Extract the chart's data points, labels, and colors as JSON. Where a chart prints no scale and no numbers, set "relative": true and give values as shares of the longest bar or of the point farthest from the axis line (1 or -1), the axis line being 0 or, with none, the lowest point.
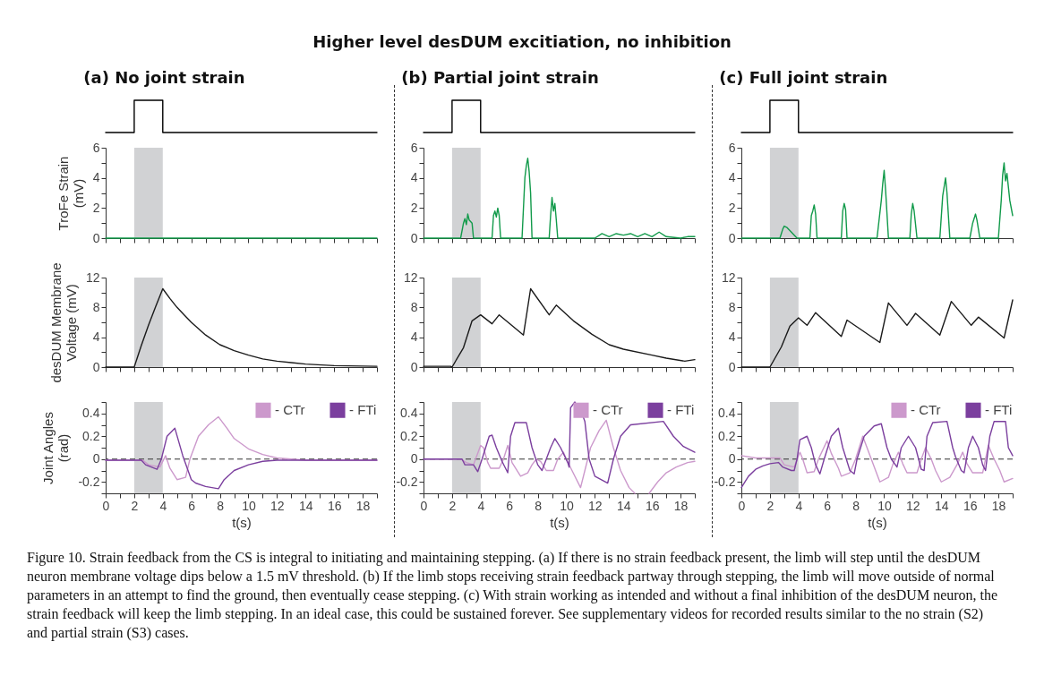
{
  "chart_data": [
    {
      "type": "other",
      "title": "Higher level desDUM excitiation, no inhibition"
    },
    {
      "type": "line",
      "title": "(a) No joint strain",
      "relative": true,
      "tick_labels": false,
      "xlim": [
        0,
        19
      ],
      "x": [
        0,
        2,
        2,
        4,
        4,
        19
      ],
      "series": [
        {
          "color": "#000000",
          "values": [
            0,
            0,
            1,
            1,
            0,
            0
          ]
        }
      ]
    },
    {
      "type": "line",
      "ylabel": "TroFe Strain (mV)",
      "tick_labels": "y",
      "xlim": [
        0,
        19
      ],
      "ylim": [
        0,
        6
      ],
      "xticks": [
        0,
        {
          "value": 1,
          "label": null
        },
        2,
        {
          "value": 3,
          "label": null
        },
        4,
        {
          "value": 5,
          "label": null
        },
        6,
        {
          "value": 7,
          "label": null
        },
        8,
        {
          "value": 9,
          "label": null
        },
        10,
        {
          "value": 11,
          "label": null
        },
        12,
        {
          "value": 13,
          "label": null
        },
        14,
        {
          "value": 15,
          "label": null
        },
        16,
        {
          "value": 17,
          "label": null
        },
        18,
        {
          "value": 19,
          "label": null
        }
      ],
      "yticks": [
        0,
        {
          "value": 1,
          "label": null
        },
        2,
        {
          "value": 3,
          "label": null
        },
        4,
        {
          "value": 5,
          "label": null
        },
        6
      ],
      "x": [
        0,
        19
      ],
      "series": [
        {
          "color": "#119a4a",
          "values": [
            0,
            0
          ]
        }
      ],
      "bands": [
        {
          "axis": "x",
          "from": 2,
          "to": 4,
          "color": "#d1d2d4"
        }
      ]
    },
    {
      "type": "line",
      "ylabel": "desDUM Membrane Voltage (mV)",
      "tick_labels": "y",
      "xlim": [
        0,
        19
      ],
      "ylim": [
        0,
        12
      ],
      "xticks": [
        0,
        {
          "value": 1,
          "label": null
        },
        2,
        {
          "value": 3,
          "label": null
        },
        4,
        {
          "value": 5,
          "label": null
        },
        6,
        {
          "value": 7,
          "label": null
        },
        8,
        {
          "value": 9,
          "label": null
        },
        10,
        {
          "value": 11,
          "label": null
        },
        12,
        {
          "value": 13,
          "label": null
        },
        14,
        {
          "value": 15,
          "label": null
        },
        16,
        {
          "value": 17,
          "label": null
        },
        18,
        {
          "value": 19,
          "label": null
        }
      ],
      "yticks": [
        0,
        {
          "value": 2,
          "label": null
        },
        4,
        {
          "value": 6,
          "label": null
        },
        8,
        {
          "value": 10,
          "label": null
        },
        12
      ],
      "x": [
        0,
        2,
        2.5,
        3,
        3.5,
        4,
        4.5,
        5,
        5.5,
        6,
        7,
        8,
        9,
        10,
        11,
        12,
        13,
        14,
        16,
        19
      ],
      "series": [
        {
          "color": "#1a1a1a",
          "values": [
            0,
            0,
            2.9,
            5.6,
            8.1,
            10.5,
            9.2,
            8.0,
            7.0,
            6.0,
            4.3,
            3.0,
            2.2,
            1.6,
            1.1,
            0.8,
            0.6,
            0.4,
            0.2,
            0.1
          ]
        }
      ],
      "bands": [
        {
          "axis": "x",
          "from": 2,
          "to": 4,
          "color": "#d1d2d4"
        }
      ]
    },
    {
      "type": "line",
      "ylabel": "Joint Angles (rad)",
      "xlabel": "t(s)",
      "xlim": [
        0,
        19
      ],
      "ylim": [
        -0.3,
        0.5
      ],
      "legend": "top right",
      "xticks": [
        0,
        {
          "value": 1,
          "label": null
        },
        2,
        {
          "value": 3,
          "label": null
        },
        4,
        {
          "value": 5,
          "label": null
        },
        6,
        {
          "value": 7,
          "label": null
        },
        8,
        {
          "value": 9,
          "label": null
        },
        10,
        {
          "value": 11,
          "label": null
        },
        12,
        {
          "value": 13,
          "label": null
        },
        14,
        {
          "value": 15,
          "label": null
        },
        16,
        {
          "value": 17,
          "label": null
        },
        18,
        {
          "value": 19,
          "label": null
        }
      ],
      "yticks": [
        {
          "value": -0.3,
          "label": null
        },
        -0.2,
        {
          "value": -0.1,
          "label": null
        },
        0,
        {
          "value": 0.1,
          "label": null
        },
        0.2,
        {
          "value": 0.3,
          "label": null
        },
        0.4,
        {
          "value": 0.5,
          "label": null
        }
      ],
      "series": [
        {
          "name": "- CTr",
          "color": "#cc99cc",
          "x": [
            0,
            2.6,
            3,
            3.8,
            4.2,
            4.5,
            5,
            5.6,
            5.9,
            6.5,
            7.2,
            7.9,
            8.5,
            9,
            10,
            11,
            12,
            14,
            19
          ],
          "values": [
            -0.01,
            -0.01,
            -0.05,
            -0.07,
            0.03,
            -0.08,
            -0.18,
            -0.16,
            0,
            0.2,
            0.3,
            0.37,
            0.27,
            0.18,
            0.09,
            0.04,
            0.01,
            -0.01,
            -0.01
          ]
        },
        {
          "name": "- FTi",
          "color": "#7b3f9e",
          "x": [
            0,
            2.5,
            2.8,
            3.6,
            3.9,
            4.3,
            4.85,
            5.4,
            6,
            6.3,
            7,
            7.9,
            8.3,
            9,
            10,
            11,
            12,
            19
          ],
          "values": [
            -0.01,
            -0.01,
            -0.05,
            -0.09,
            0,
            0.2,
            0.27,
            0.03,
            -0.18,
            -0.21,
            -0.24,
            -0.26,
            -0.18,
            -0.1,
            -0.05,
            -0.02,
            -0.01,
            -0.01
          ]
        }
      ],
      "ref_lines": [
        {
          "axis": "y",
          "value": 0,
          "line_style": "dashed",
          "color": "#333333"
        }
      ],
      "bands": [
        {
          "axis": "x",
          "from": 2,
          "to": 4,
          "color": "#d1d2d4"
        }
      ]
    },
    {
      "type": "line",
      "title": "(b) Partial joint strain",
      "relative": true,
      "tick_labels": false,
      "xlim": [
        0,
        19
      ],
      "x": [
        0,
        2,
        2,
        4,
        4,
        19
      ],
      "series": [
        {
          "color": "#000000",
          "values": [
            0,
            0,
            1,
            1,
            0,
            0
          ]
        }
      ]
    },
    {
      "type": "line",
      "tick_labels": "y",
      "xlim": [
        0,
        19
      ],
      "ylim": [
        0,
        6
      ],
      "xticks": [
        0,
        {
          "value": 1,
          "label": null
        },
        2,
        {
          "value": 3,
          "label": null
        },
        4,
        {
          "value": 5,
          "label": null
        },
        6,
        {
          "value": 7,
          "label": null
        },
        8,
        {
          "value": 9,
          "label": null
        },
        10,
        {
          "value": 11,
          "label": null
        },
        12,
        {
          "value": 13,
          "label": null
        },
        14,
        {
          "value": 15,
          "label": null
        },
        16,
        {
          "value": 17,
          "label": null
        },
        18,
        {
          "value": 19,
          "label": null
        }
      ],
      "yticks": [
        0,
        {
          "value": 1,
          "label": null
        },
        2,
        {
          "value": 3,
          "label": null
        },
        4,
        {
          "value": 5,
          "label": null
        },
        6
      ],
      "x": [
        0,
        2.6,
        2.8,
        2.9,
        3.0,
        3.1,
        3.2,
        3.4,
        3.5,
        4.8,
        4.9,
        5.0,
        5.1,
        5.2,
        5.3,
        5.4,
        6.9,
        7.0,
        7.1,
        7.2,
        7.3,
        7.4,
        7.5,
        7.6,
        8.8,
        8.9,
        9.0,
        9.1,
        9.2,
        9.3,
        9.4,
        12,
        12.5,
        13,
        13.5,
        14,
        14.5,
        15,
        15.5,
        16,
        16.5,
        17,
        18,
        18.5,
        19
      ],
      "series": [
        {
          "color": "#119a4a",
          "values": [
            0,
            0,
            1.0,
            1.3,
            0.9,
            1.6,
            1.2,
            1.0,
            0,
            0,
            1.5,
            1.8,
            1.4,
            2.0,
            1.5,
            0,
            0,
            2.0,
            4.0,
            4.8,
            5.3,
            4.4,
            3.0,
            0,
            0,
            1.5,
            2.7,
            1.8,
            2.3,
            1.2,
            0,
            0,
            0.3,
            0.1,
            0.3,
            0.2,
            0.3,
            0.1,
            0.3,
            0.1,
            0.4,
            0.1,
            0,
            0.1,
            0.1
          ]
        }
      ],
      "bands": [
        {
          "axis": "x",
          "from": 2,
          "to": 4,
          "color": "#d1d2d4"
        }
      ]
    },
    {
      "type": "line",
      "tick_labels": "y",
      "xlim": [
        0,
        19
      ],
      "ylim": [
        0,
        12
      ],
      "xticks": [
        0,
        {
          "value": 1,
          "label": null
        },
        2,
        {
          "value": 3,
          "label": null
        },
        4,
        {
          "value": 5,
          "label": null
        },
        6,
        {
          "value": 7,
          "label": null
        },
        8,
        {
          "value": 9,
          "label": null
        },
        10,
        {
          "value": 11,
          "label": null
        },
        12,
        {
          "value": 13,
          "label": null
        },
        14,
        {
          "value": 15,
          "label": null
        },
        16,
        {
          "value": 17,
          "label": null
        },
        18,
        {
          "value": 19,
          "label": null
        }
      ],
      "yticks": [
        0,
        {
          "value": 2,
          "label": null
        },
        4,
        {
          "value": 6,
          "label": null
        },
        8,
        {
          "value": 10,
          "label": null
        },
        12
      ],
      "x": [
        0,
        1.9,
        2,
        2.8,
        3.4,
        4,
        4.8,
        5.3,
        7,
        7.5,
        8.8,
        9.3,
        10.5,
        11.8,
        13,
        14,
        16,
        17,
        18.3,
        19
      ],
      "series": [
        {
          "color": "#1a1a1a",
          "values": [
            0.1,
            0.1,
            0,
            2.6,
            6.2,
            7.0,
            5.8,
            7.0,
            4.3,
            10.5,
            7.0,
            8.3,
            6.2,
            4.4,
            3.0,
            2.4,
            1.6,
            1.2,
            0.8,
            1.0
          ]
        }
      ],
      "bands": [
        {
          "axis": "x",
          "from": 2,
          "to": 4,
          "color": "#d1d2d4"
        }
      ]
    },
    {
      "type": "line",
      "xlabel": "t(s)",
      "xlim": [
        0,
        19
      ],
      "ylim": [
        -0.3,
        0.5
      ],
      "legend": "top right",
      "xticks": [
        0,
        {
          "value": 1,
          "label": null
        },
        2,
        {
          "value": 3,
          "label": null
        },
        4,
        {
          "value": 5,
          "label": null
        },
        6,
        {
          "value": 7,
          "label": null
        },
        8,
        {
          "value": 9,
          "label": null
        },
        10,
        {
          "value": 11,
          "label": null
        },
        12,
        {
          "value": 13,
          "label": null
        },
        14,
        {
          "value": 15,
          "label": null
        },
        16,
        {
          "value": 17,
          "label": null
        },
        18,
        {
          "value": 19,
          "label": null
        }
      ],
      "yticks": [
        {
          "value": -0.3,
          "label": null
        },
        -0.2,
        {
          "value": -0.1,
          "label": null
        },
        0,
        {
          "value": 0.1,
          "label": null
        },
        0.2,
        {
          "value": 0.3,
          "label": null
        },
        0.4,
        {
          "value": 0.5,
          "label": null
        }
      ],
      "series": [
        {
          "name": "- CTr",
          "color": "#cc99cc",
          "x": [
            0,
            2.6,
            3,
            3.5,
            4,
            4.2,
            4.5,
            4.7,
            5.3,
            5.6,
            5.9,
            6.2,
            6.8,
            7.3,
            7.6,
            7.9,
            8.2,
            8.6,
            9.1,
            9.4,
            9.8,
            10,
            10.4,
            11,
            11.3,
            11.7,
            12.3,
            12.8,
            13.3,
            13.8,
            14.4,
            14.8,
            15.3,
            15.8,
            16.4,
            17,
            17.7,
            18.5,
            19
          ],
          "values": [
            0,
            0,
            -0.03,
            -0.05,
            0.12,
            0.1,
            -0.03,
            -0.08,
            -0.08,
            0,
            0.12,
            -0.03,
            -0.15,
            -0.12,
            -0.05,
            0,
            -0.02,
            -0.1,
            -0.1,
            0,
            0.06,
            0,
            -0.1,
            -0.25,
            -0.1,
            0.1,
            0.25,
            0.34,
            0.1,
            -0.1,
            -0.25,
            -0.3,
            null,
            -0.3,
            -0.2,
            -0.12,
            -0.07,
            -0.03,
            -0.02
          ]
        },
        {
          "name": "- FTi",
          "color": "#7b3f9e",
          "x": [
            0,
            2.7,
            2.9,
            3.5,
            3.8,
            4.1,
            4.6,
            4.8,
            5.1,
            5.5,
            5.9,
            6.1,
            6.4,
            7.2,
            7.6,
            8,
            8.3,
            8.9,
            9.2,
            9.6,
            10.1,
            10.2,
            10.3,
            10.6,
            11.1,
            11.3,
            11.6,
            12,
            12.9,
            13.3,
            13.8,
            14.5,
            16.8,
            17.5,
            18.2,
            19
          ],
          "values": [
            0,
            0,
            -0.05,
            -0.05,
            -0.11,
            0,
            0.2,
            0.21,
            0.1,
            -0.02,
            -0.12,
            0.2,
            0.32,
            0.32,
            0.1,
            -0.05,
            -0.1,
            0.1,
            0.18,
            0.1,
            -0.03,
            -0.07,
            0.45,
            0.5,
            0.4,
            0.33,
            0,
            -0.15,
            -0.21,
            0,
            0.2,
            0.3,
            0.33,
            0.2,
            0.11,
            0.06
          ]
        }
      ],
      "ref_lines": [
        {
          "axis": "y",
          "value": 0,
          "line_style": "dashed",
          "color": "#333333"
        }
      ],
      "bands": [
        {
          "axis": "x",
          "from": 2,
          "to": 4,
          "color": "#d1d2d4"
        }
      ]
    },
    {
      "type": "line",
      "title": "(c) Full joint strain",
      "relative": true,
      "tick_labels": false,
      "xlim": [
        0,
        19
      ],
      "x": [
        0,
        2,
        2,
        4,
        4,
        19
      ],
      "series": [
        {
          "color": "#000000",
          "values": [
            0,
            0,
            1,
            1,
            0,
            0
          ]
        }
      ]
    },
    {
      "type": "line",
      "tick_labels": "y",
      "xlim": [
        0,
        19
      ],
      "ylim": [
        0,
        6
      ],
      "xticks": [
        0,
        {
          "value": 1,
          "label": null
        },
        2,
        {
          "value": 3,
          "label": null
        },
        4,
        {
          "value": 5,
          "label": null
        },
        6,
        {
          "value": 7,
          "label": null
        },
        8,
        {
          "value": 9,
          "label": null
        },
        10,
        {
          "value": 11,
          "label": null
        },
        12,
        {
          "value": 13,
          "label": null
        },
        14,
        {
          "value": 15,
          "label": null
        },
        16,
        {
          "value": 17,
          "label": null
        },
        18,
        {
          "value": 19,
          "label": null
        }
      ],
      "yticks": [
        0,
        {
          "value": 1,
          "label": null
        },
        2,
        {
          "value": 3,
          "label": null
        },
        4,
        {
          "value": 5,
          "label": null
        },
        6
      ],
      "x": [
        0,
        2.7,
        2.9,
        3.0,
        3.2,
        3.5,
        3.9,
        4.8,
        4.9,
        5.0,
        5.1,
        5.2,
        5.3,
        7.0,
        7.1,
        7.2,
        7.3,
        7.4,
        9.5,
        9.8,
        9.9,
        10.0,
        10.1,
        10.3,
        11.8,
        11.9,
        12.0,
        12.1,
        12.3,
        13.9,
        14.1,
        14.3,
        14.4,
        14.6,
        16.0,
        16.2,
        16.4,
        16.5,
        16.7,
        18.0,
        18.2,
        18.3,
        18.4,
        18.5,
        18.6,
        18.8,
        19
      ],
      "series": [
        {
          "color": "#119a4a",
          "values": [
            0,
            0,
            0.6,
            0.8,
            0.7,
            0.4,
            0,
            0,
            1.5,
            1.8,
            2.2,
            1.6,
            0,
            0,
            1.8,
            2.3,
            1.9,
            0,
            0,
            2.5,
            3.6,
            4.5,
            3.2,
            0,
            0,
            1.6,
            2.3,
            1.8,
            0,
            0,
            2.8,
            4.0,
            3.0,
            0,
            0,
            1.0,
            1.6,
            1.2,
            0,
            0,
            2.5,
            4.2,
            5.0,
            3.8,
            4.3,
            2.5,
            1.5
          ]
        }
      ],
      "bands": [
        {
          "axis": "x",
          "from": 2,
          "to": 4,
          "color": "#d1d2d4"
        }
      ]
    },
    {
      "type": "line",
      "tick_labels": "y",
      "xlim": [
        0,
        19
      ],
      "ylim": [
        0,
        12
      ],
      "xticks": [
        0,
        {
          "value": 1,
          "label": null
        },
        2,
        {
          "value": 3,
          "label": null
        },
        4,
        {
          "value": 5,
          "label": null
        },
        6,
        {
          "value": 7,
          "label": null
        },
        8,
        {
          "value": 9,
          "label": null
        },
        10,
        {
          "value": 11,
          "label": null
        },
        12,
        {
          "value": 13,
          "label": null
        },
        14,
        {
          "value": 15,
          "label": null
        },
        16,
        {
          "value": 17,
          "label": null
        },
        18,
        {
          "value": 19,
          "label": null
        }
      ],
      "yticks": [
        0,
        {
          "value": 2,
          "label": null
        },
        4,
        {
          "value": 6,
          "label": null
        },
        8,
        {
          "value": 10,
          "label": null
        },
        12
      ],
      "x": [
        0,
        2,
        2.8,
        3.4,
        4,
        4.6,
        5.2,
        7,
        7.4,
        9.7,
        10.3,
        11.6,
        12.2,
        13.9,
        14.7,
        16.1,
        16.6,
        18.4,
        19
      ],
      "series": [
        {
          "color": "#1a1a1a",
          "values": [
            0,
            0,
            2.7,
            5.5,
            6.6,
            5.6,
            7.3,
            4.1,
            6.3,
            3.3,
            8.6,
            5.6,
            7.2,
            4.3,
            8.8,
            5.6,
            6.7,
            3.9,
            9.0
          ]
        }
      ],
      "bands": [
        {
          "axis": "x",
          "from": 2,
          "to": 4,
          "color": "#d1d2d4"
        }
      ]
    },
    {
      "type": "line",
      "xlabel": "t(s)",
      "xlim": [
        0,
        19
      ],
      "ylim": [
        -0.3,
        0.5
      ],
      "legend": "top right",
      "xticks": [
        0,
        {
          "value": 1,
          "label": null
        },
        2,
        {
          "value": 3,
          "label": null
        },
        4,
        {
          "value": 5,
          "label": null
        },
        6,
        {
          "value": 7,
          "label": null
        },
        8,
        {
          "value": 9,
          "label": null
        },
        10,
        {
          "value": 11,
          "label": null
        },
        12,
        {
          "value": 13,
          "label": null
        },
        14,
        {
          "value": 15,
          "label": null
        },
        16,
        {
          "value": 17,
          "label": null
        },
        18,
        {
          "value": 19,
          "label": null
        }
      ],
      "yticks": [
        {
          "value": -0.3,
          "label": null
        },
        -0.2,
        {
          "value": -0.1,
          "label": null
        },
        0,
        {
          "value": 0.1,
          "label": null
        },
        0.2,
        {
          "value": 0.3,
          "label": null
        },
        0.4,
        {
          "value": 0.5,
          "label": null
        }
      ],
      "series": [
        {
          "name": "- CTr",
          "color": "#cc99cc",
          "x": [
            0,
            1,
            2.7,
            3,
            3.7,
            4.1,
            4.3,
            4.6,
            5.1,
            5.4,
            6,
            6.3,
            6.8,
            7,
            7.6,
            8,
            8.5,
            8.8,
            9.4,
            9.7,
            10.3,
            10.6,
            11,
            11.3,
            11.6,
            12.3,
            12.6,
            12.9,
            13.3,
            13.6,
            14,
            14.6,
            15.1,
            15.5,
            15.8,
            16.2,
            16.9,
            17.1,
            17.3,
            17.7,
            18.1,
            18.4,
            19
          ],
          "values": [
            0.03,
            0.01,
            0.01,
            -0.05,
            -0.07,
            0.06,
            0,
            -0.12,
            -0.11,
            0,
            0.16,
            0.05,
            -0.08,
            -0.15,
            -0.12,
            0,
            0.2,
            0.1,
            -0.1,
            -0.2,
            -0.16,
            -0.05,
            0.06,
            -0.04,
            -0.12,
            -0.12,
            0,
            0.1,
            0,
            -0.1,
            -0.2,
            -0.16,
            -0.05,
            0.06,
            -0.04,
            -0.12,
            -0.12,
            0,
            0.12,
            0,
            -0.1,
            -0.2,
            -0.17
          ]
        },
        {
          "name": "- FTi",
          "color": "#7b3f9e",
          "x": [
            0,
            0.5,
            1,
            1.5,
            2,
            2.6,
            2.9,
            3.5,
            3.7,
            3.9,
            4.1,
            4.6,
            4.9,
            5.2,
            5.5,
            5.8,
            6.3,
            6.8,
            7.1,
            7.6,
            7.9,
            8.1,
            8.6,
            9.3,
            9.8,
            10.2,
            10.5,
            10.9,
            11.2,
            11.7,
            12.2,
            12.6,
            12.8,
            13,
            13.4,
            14.4,
            14.8,
            15,
            15.4,
            15.6,
            15.9,
            16.2,
            16.6,
            16.9,
            17.1,
            17.4,
            17.7,
            18.5,
            18.7,
            19
          ],
          "values": [
            -0.25,
            -0.15,
            -0.09,
            -0.06,
            -0.04,
            -0.03,
            -0.07,
            -0.1,
            -0.1,
            0,
            0.17,
            0.2,
            0.1,
            -0.05,
            -0.13,
            0,
            0.2,
            0.27,
            0.1,
            -0.1,
            -0.13,
            0,
            0.2,
            0.29,
            0.31,
            0.1,
            0,
            -0.07,
            0.1,
            0.2,
            0.1,
            -0.09,
            -0.1,
            0.2,
            0.32,
            0.33,
            0.1,
            0.02,
            -0.1,
            -0.12,
            0.1,
            0.2,
            0.1,
            -0.05,
            -0.1,
            0.2,
            0.33,
            0.33,
            0.1,
            0.03
          ]
        }
      ],
      "ref_lines": [
        {
          "axis": "y",
          "value": 0,
          "line_style": "dashed",
          "color": "#333333"
        }
      ],
      "bands": [
        {
          "axis": "x",
          "from": 2,
          "to": 4,
          "color": "#d1d2d4"
        }
      ]
    },
    {
      "type": "other",
      "annotations": [
        "Figure 10. Strain feedback from the CS is integral to initiating and maintaining stepping. (a) If there is no strain feedback present, the limb will step until the desDUM neuron membrane voltage dips below a 1.5 mV threshold. (b) If the limb stops receiving strain feedback partway through stepping, the limb will move outside of normal parameters in an attempt to find the ground, then eventually cease stepping. (c) With strain working as intended and without a final inhibition of the desDUM neuron, the strain feedback will keep the limb stepping. In an ideal case, this could be sustained forever. See supplementary videos for recorded results similar to the no strain (S2) and partial strain (S3) cases."
      ]
    }
  ]
}
